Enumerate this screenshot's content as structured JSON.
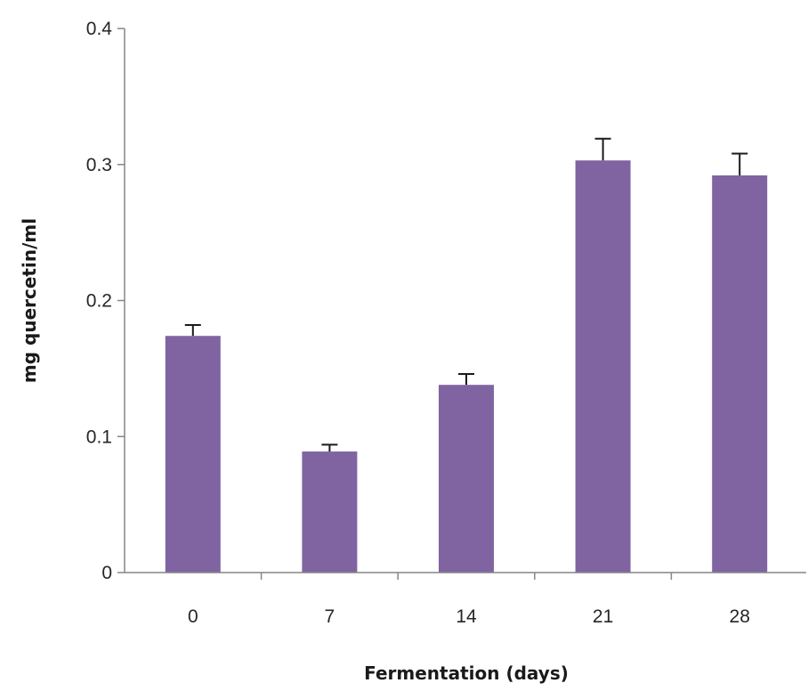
{
  "chart_data": {
    "type": "bar",
    "categories": [
      "0",
      "7",
      "14",
      "21",
      "28"
    ],
    "values": [
      0.174,
      0.089,
      0.138,
      0.303,
      0.292
    ],
    "errors": [
      0.008,
      0.005,
      0.008,
      0.016,
      0.016
    ],
    "xlabel": "Fermentation (days)",
    "ylabel": "mg quercetin/ml",
    "ylim": [
      0,
      0.4
    ],
    "yticks": [
      "0",
      "0.1",
      "0.2",
      "0.3",
      "0.4"
    ],
    "grid": false,
    "bar_color": "#8064a2"
  }
}
